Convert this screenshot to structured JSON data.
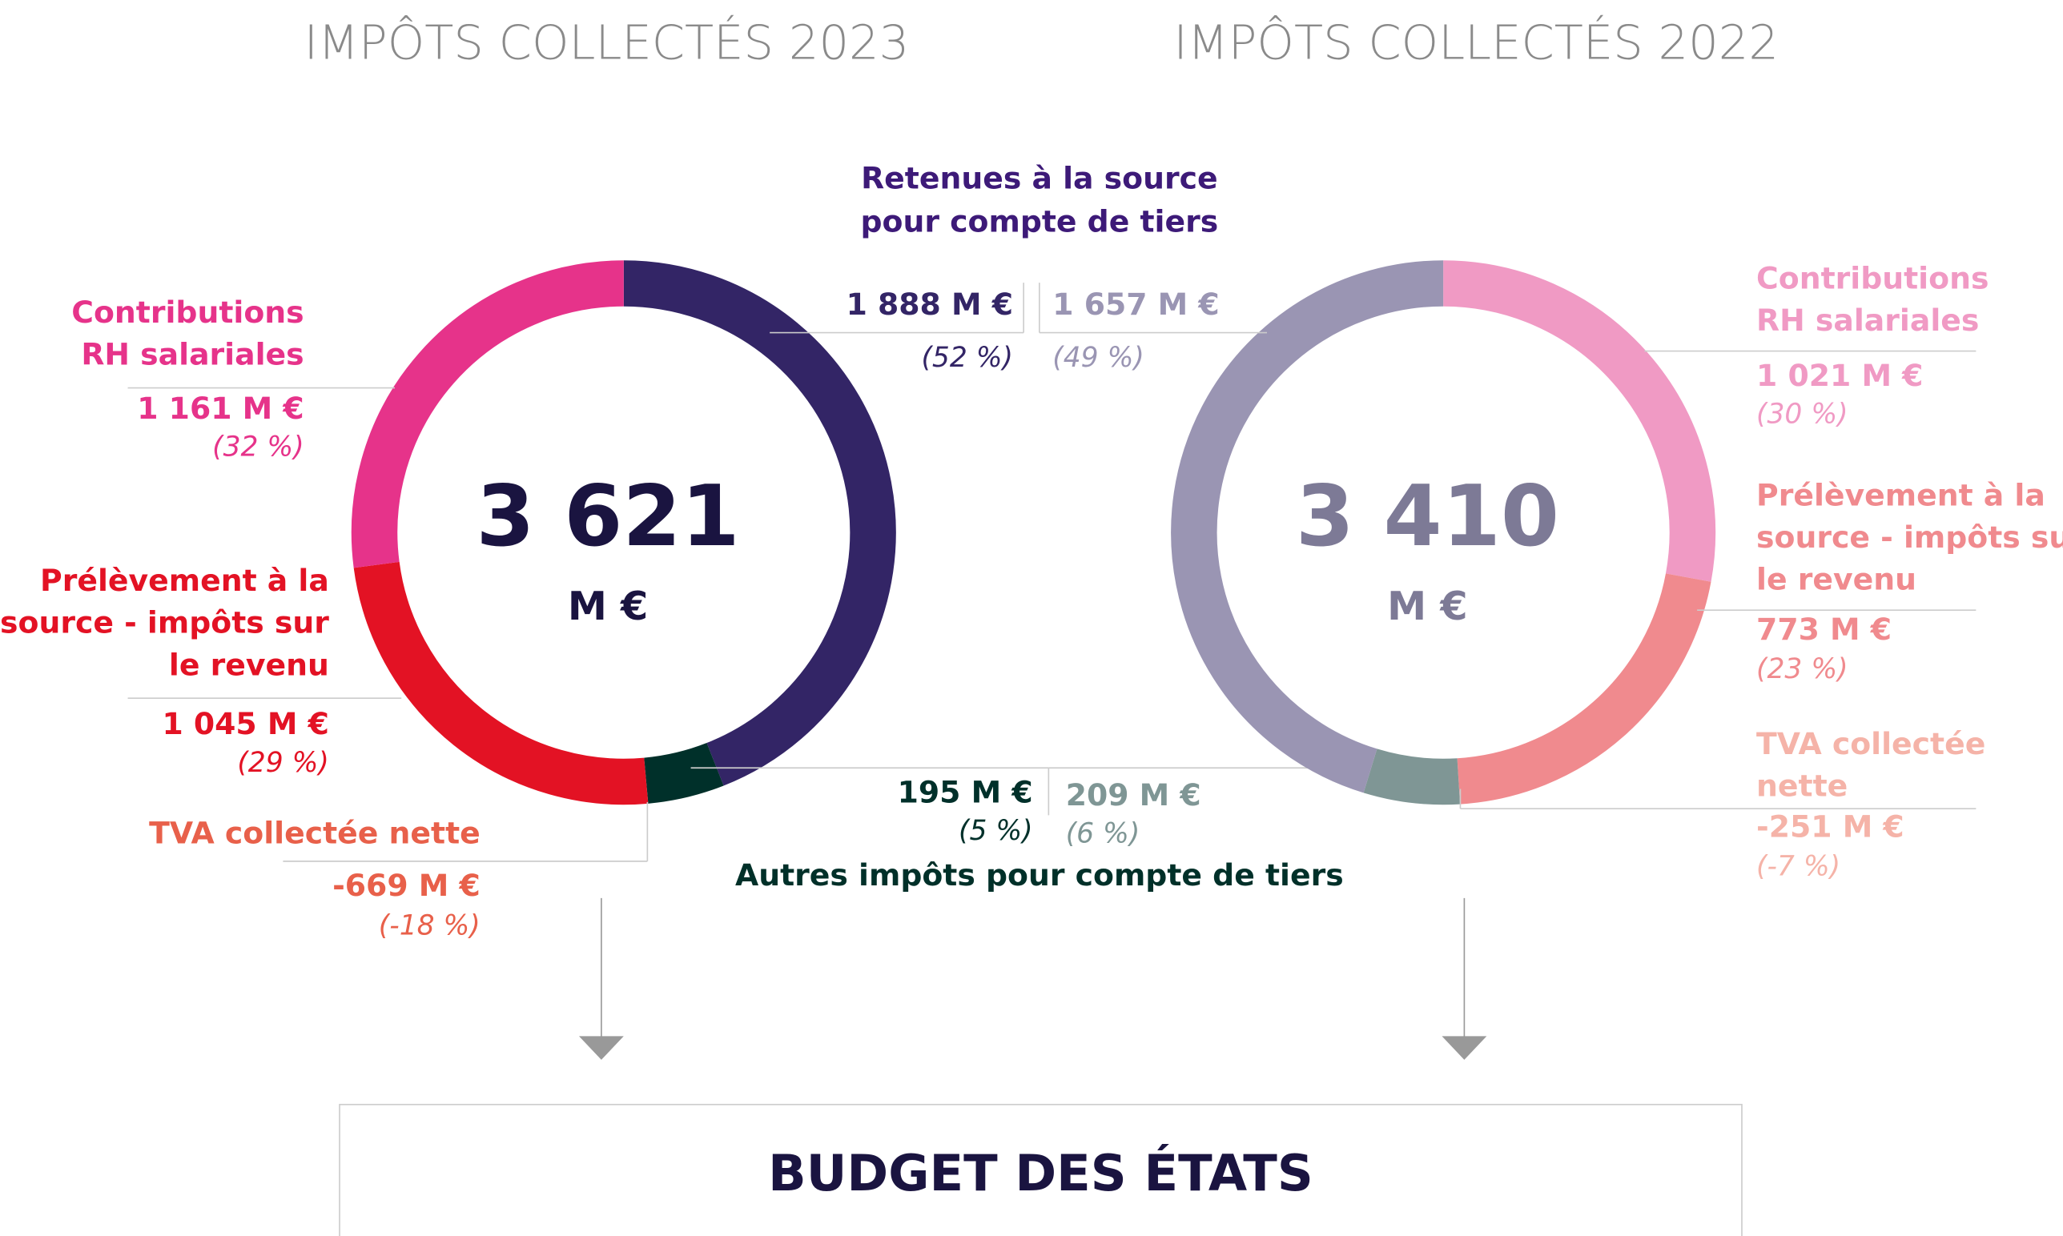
{
  "chart_data": [
    {
      "type": "pie",
      "title": "IMPÔTS COLLECTÉS 2023",
      "total": 3621,
      "total_label": "3 621",
      "unit": "M €",
      "center_color": "#1a1440",
      "categories": [
        null,
        null,
        [
          "Prélèvement à la",
          "source - impôts sur",
          "le revenu"
        ],
        [
          "Contributions",
          "RH salariales"
        ],
        [
          "TVA collectée nette"
        ]
      ],
      "values": [
        1888,
        195,
        1045,
        1161,
        -669
      ],
      "value_labels": [
        "1 888 M €",
        "195 M €",
        "1 045 M €",
        "1 161 M €",
        "-669 M €"
      ],
      "percents": [
        52,
        5,
        29,
        32,
        -18
      ],
      "percent_labels": [
        "(52 %)",
        "(5 %)",
        "(29 %)",
        "(32 %)",
        "(-18 %)"
      ],
      "colors": [
        "#332566",
        "#00302a",
        "#e31224",
        "#e6338a",
        "#e8604a"
      ]
    },
    {
      "type": "pie",
      "title": "IMPÔTS COLLECTÉS 2022",
      "total": 3410,
      "total_label": "3 410",
      "unit": "M €",
      "center_color": "#7d7a96",
      "categories": [
        [
          "Contributions",
          "RH salariales"
        ],
        [
          "Prélèvement à la",
          "source - impôts sur",
          "le revenu"
        ],
        null,
        null,
        [
          "TVA collectée",
          "nette"
        ]
      ],
      "values": [
        1021,
        773,
        209,
        1657,
        -251
      ],
      "value_labels": [
        "1 021 M €",
        "773 M €",
        "209 M €",
        "1 657 M €",
        "-251 M €"
      ],
      "percents": [
        30,
        23,
        6,
        49,
        -7
      ],
      "percent_labels": [
        "(30 %)",
        "(23 %)",
        "(6 %)",
        "(49 %)",
        "(-7 %)"
      ],
      "colors": [
        "#f09ac4",
        "#f08a8e",
        "#7f9695",
        "#9a95b3",
        "#f5b3a8"
      ]
    }
  ],
  "shared_labels": {
    "retenues": [
      "Retenues à la source",
      "pour compte de tiers"
    ],
    "autres": "Autres impôts pour compte de tiers"
  },
  "footer": "BUDGET DES ÉTATS"
}
